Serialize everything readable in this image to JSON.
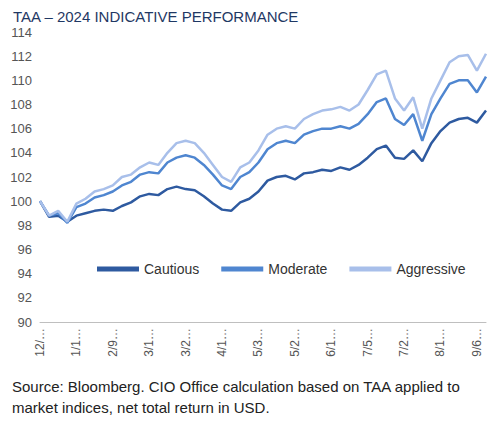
{
  "chart_data": {
    "type": "line",
    "title": "TAA – 2024 INDICATIVE PERFORMANCE",
    "source": "Source: Bloomberg. CIO Office calculation based on TAA applied to market indices, net total return in USD.",
    "categories": [
      "12/…",
      null,
      null,
      null,
      "1/1…",
      null,
      null,
      null,
      "2/9…",
      null,
      null,
      null,
      "3/1…",
      null,
      null,
      null,
      "3/2…",
      null,
      null,
      null,
      "4/1…",
      null,
      null,
      null,
      "5/3…",
      null,
      null,
      null,
      "5/2…",
      null,
      null,
      null,
      "6/1…",
      null,
      null,
      null,
      "7/5…",
      null,
      null,
      null,
      "7/2…",
      null,
      null,
      null,
      "8/1…",
      null,
      null,
      null,
      "9/6…",
      null
    ],
    "series": [
      {
        "name": "Cautious",
        "color": "#2e5aa0",
        "values": [
          100,
          98.7,
          98.8,
          98.3,
          98.8,
          99.0,
          99.2,
          99.3,
          99.2,
          99.6,
          99.9,
          100.4,
          100.6,
          100.5,
          101.0,
          101.2,
          101.0,
          100.9,
          100.4,
          99.8,
          99.3,
          99.2,
          99.9,
          100.2,
          100.8,
          101.7,
          102.0,
          102.1,
          101.8,
          102.3,
          102.4,
          102.6,
          102.5,
          102.8,
          102.6,
          103.0,
          103.6,
          104.3,
          104.6,
          103.6,
          103.5,
          104.2,
          103.3,
          104.8,
          105.8,
          106.5,
          106.8,
          106.9,
          106.5,
          107.5
        ]
      },
      {
        "name": "Moderate",
        "color": "#4f86d0",
        "values": [
          100,
          98.8,
          99.0,
          98.2,
          99.5,
          99.8,
          100.3,
          100.5,
          100.8,
          101.3,
          101.6,
          102.2,
          102.4,
          102.3,
          103.2,
          103.6,
          103.8,
          103.6,
          103.0,
          102.2,
          101.3,
          101.0,
          102.0,
          102.4,
          103.2,
          104.3,
          104.8,
          105.0,
          104.8,
          105.5,
          105.8,
          106.0,
          106.0,
          106.2,
          106.0,
          106.4,
          107.2,
          108.2,
          108.5,
          106.8,
          106.3,
          107.2,
          105.0,
          107.2,
          108.5,
          109.7,
          110.0,
          110.0,
          109.0,
          110.3
        ]
      },
      {
        "name": "Aggressive",
        "color": "#a8bfea",
        "values": [
          100,
          98.8,
          99.2,
          98.3,
          99.8,
          100.2,
          100.8,
          101.0,
          101.3,
          102.0,
          102.2,
          102.8,
          103.2,
          103.0,
          104.0,
          104.8,
          105.0,
          104.8,
          104.0,
          103.0,
          102.0,
          101.6,
          102.8,
          103.2,
          104.2,
          105.5,
          106.0,
          106.2,
          106.0,
          106.8,
          107.2,
          107.5,
          107.6,
          107.8,
          107.5,
          108.0,
          109.2,
          110.5,
          110.8,
          108.5,
          107.5,
          108.6,
          106.0,
          108.5,
          110.0,
          111.5,
          112.0,
          112.1,
          110.8,
          112.2
        ]
      }
    ],
    "ylim": [
      90,
      114
    ],
    "yticks": [
      90,
      92,
      94,
      96,
      98,
      100,
      102,
      104,
      106,
      108,
      110,
      112,
      114
    ],
    "grid": false,
    "legend": "center"
  }
}
